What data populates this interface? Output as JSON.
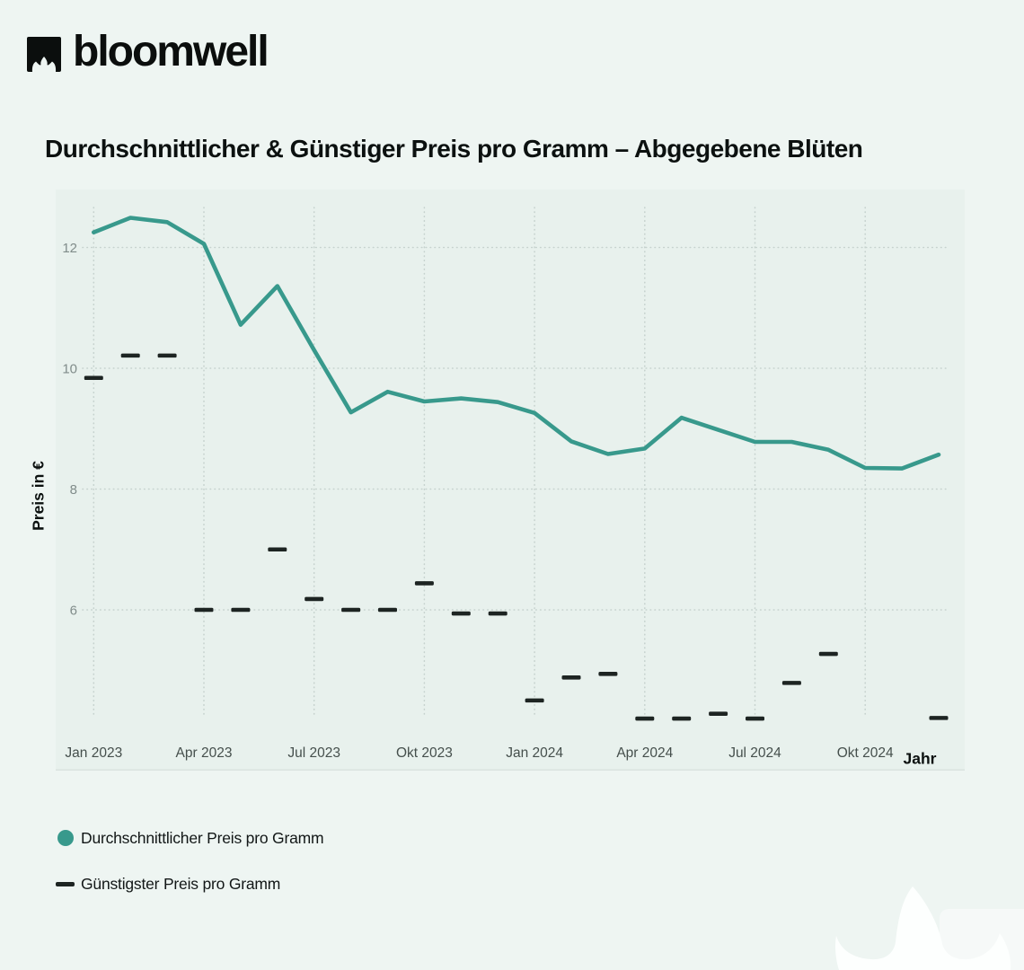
{
  "brand": {
    "logo_text": "bloomwell"
  },
  "title": "Durchschnittlicher & Günstiger Preis pro Gramm – Abgegebene Blüten",
  "y_axis_title": "Preis in €",
  "x_axis_title": "Jahr",
  "colors": {
    "page_background": "#eef5f2",
    "plot_background": "#e8f1ed",
    "avg_line": "#38998c",
    "min_dash": "#1d2422",
    "gridline": "#c6d2ce",
    "plot_bottom_border": "#dae3df",
    "y_tick_text": "#808c8a",
    "x_tick_text": "#454f4c"
  },
  "legend": {
    "items": [
      {
        "label": "Durchschnittlicher Preis pro Gramm",
        "swatch": "circle",
        "color": "#38998c"
      },
      {
        "label": "Günstigster Preis pro Gramm",
        "swatch": "dash",
        "color": "#1d2422"
      }
    ]
  },
  "chart_data": {
    "type": "line",
    "title": "Durchschnittlicher & Günstiger Preis pro Gramm – Abgegebene Blüten",
    "xlabel": "Jahr",
    "ylabel": "Preis in €",
    "ylim": [
      3.3,
      13.0
    ],
    "grid": "dotted",
    "legend_position": "bottom-left",
    "y_ticks": [
      6,
      8,
      10,
      12
    ],
    "x": [
      "Jan 2023",
      "Feb 2023",
      "Mär 2023",
      "Apr 2023",
      "Mai 2023",
      "Jun 2023",
      "Jul 2023",
      "Aug 2023",
      "Sep 2023",
      "Okt 2023",
      "Nov 2023",
      "Dez 2023",
      "Jan 2024",
      "Feb 2024",
      "Mär 2024",
      "Apr 2024",
      "Mai 2024",
      "Jun 2024",
      "Jul 2024",
      "Aug 2024",
      "Sep 2024",
      "Okt 2024",
      "Nov 2024",
      "Dez 2024"
    ],
    "x_tick_positions": [
      0,
      3,
      6,
      9,
      12,
      15,
      18,
      21
    ],
    "x_tick_labels": [
      "Jan 2023",
      "Apr 2023",
      "Jul 2023",
      "Okt 2023",
      "Jan 2024",
      "Apr 2024",
      "Jul 2024",
      "Okt 2024"
    ],
    "series": [
      {
        "name": "Durchschnittlicher Preis pro Gramm",
        "style": "line",
        "color": "#38998c",
        "values": [
          12.25,
          12.49,
          12.42,
          12.06,
          10.72,
          11.36,
          10.3,
          9.27,
          9.61,
          9.45,
          9.5,
          9.44,
          9.26,
          8.79,
          8.58,
          8.67,
          9.18,
          8.98,
          8.78,
          8.78,
          8.65,
          8.35,
          8.34,
          8.57
        ]
      },
      {
        "name": "Günstigster Preis pro Gramm",
        "style": "dash-markers",
        "color": "#1d2422",
        "values": [
          9.84,
          10.21,
          10.21,
          6.0,
          6.0,
          7.0,
          6.18,
          6.0,
          6.0,
          6.44,
          5.94,
          5.94,
          4.5,
          4.88,
          4.94,
          4.2,
          4.2,
          4.28,
          4.2,
          4.79,
          5.27,
          null,
          null,
          4.21
        ]
      }
    ]
  }
}
